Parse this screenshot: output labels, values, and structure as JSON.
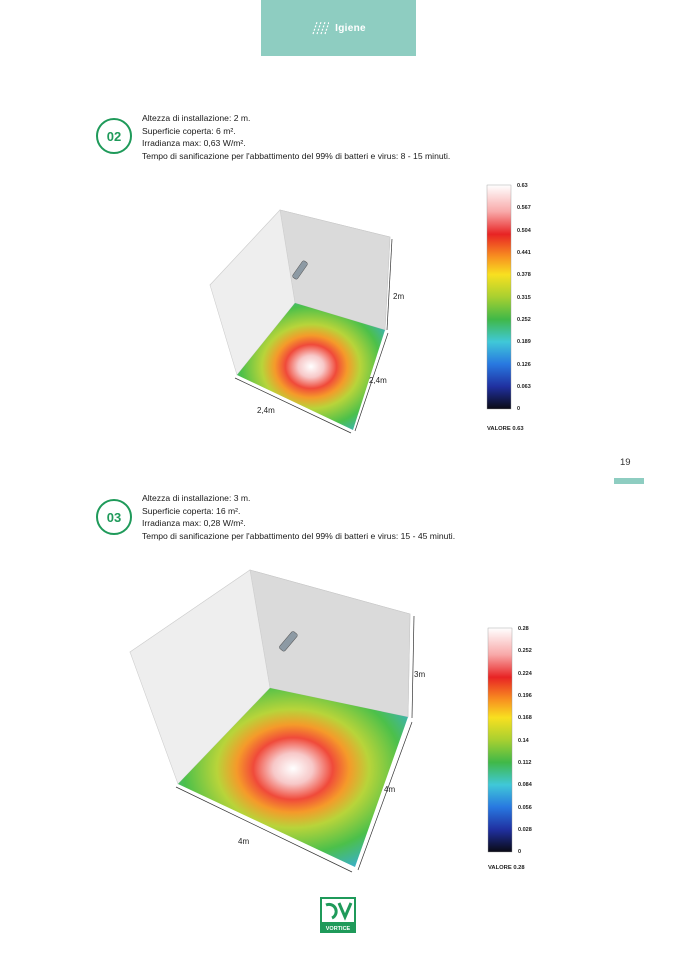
{
  "header": {
    "tab_label": "Igiene",
    "tab_icon": "heat-waves-icon",
    "tab_color": "#8ecdc1"
  },
  "page_number": "19",
  "accent_color": "#1f9a5a",
  "sections": [
    {
      "number": "02",
      "lines": [
        "Altezza di installazione: 2 m.",
        "Superficie coperta: 6 m².",
        "Irradianza max: 0,63 W/m².",
        "Tempo di sanificazione per l'abbattimento del 99% di batteri e virus: 8 - 15 minuti."
      ],
      "dims": {
        "height": "2m",
        "depth": "2,4m",
        "width": "2,4m"
      },
      "scale_ticks": [
        "0.63",
        "0.567",
        "0.504",
        "0.441",
        "0.378",
        "0.315",
        "0.252",
        "0.189",
        "0.126",
        "0.063",
        "0"
      ],
      "scale_caption": "VALORE 0.63"
    },
    {
      "number": "03",
      "lines": [
        "Altezza di installazione: 3 m.",
        "Superficie coperta: 16 m².",
        "Irradianza max: 0,28 W/m².",
        "Tempo di sanificazione per l'abbattimento del 99% di batteri e virus: 15 - 45 minuti."
      ],
      "dims": {
        "height": "3m",
        "depth": "4m",
        "width": "4m"
      },
      "scale_ticks": [
        "0.28",
        "0.252",
        "0.224",
        "0.196",
        "0.168",
        "0.14",
        "0.112",
        "0.084",
        "0.056",
        "0.028",
        "0"
      ],
      "scale_caption": "VALORE 0.28"
    }
  ],
  "footer": {
    "brand": "VORTICE",
    "logo_icon": "vortice-logo-icon"
  }
}
